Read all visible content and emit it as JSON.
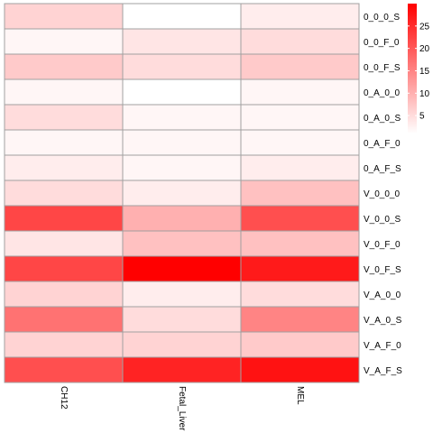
{
  "chart_data": {
    "type": "heatmap",
    "title": "",
    "xlabel": "",
    "ylabel": "",
    "columns": [
      "CH12",
      "Fetal_Liver",
      "MEL"
    ],
    "rows": [
      "0_0_0_S",
      "0_0_F_0",
      "0_0_F_S",
      "0_A_0_0",
      "0_A_0_S",
      "0_A_F_0",
      "0_A_F_S",
      "V_0_0_0",
      "V_0_0_S",
      "V_0_F_0",
      "V_0_F_S",
      "V_A_0_0",
      "V_A_0_S",
      "V_A_F_0",
      "V_A_F_S"
    ],
    "values": [
      [
        6,
        1,
        3
      ],
      [
        2,
        4,
        5
      ],
      [
        7,
        5,
        7
      ],
      [
        2,
        1,
        2
      ],
      [
        5,
        2,
        2
      ],
      [
        2,
        2,
        2
      ],
      [
        3,
        2,
        3
      ],
      [
        5,
        3,
        8
      ],
      [
        22,
        10,
        21
      ],
      [
        4,
        8,
        8
      ],
      [
        22,
        30,
        27
      ],
      [
        6,
        3,
        5
      ],
      [
        17,
        5,
        15
      ],
      [
        6,
        6,
        7
      ],
      [
        21,
        26,
        28
      ]
    ],
    "color_scale": {
      "min": 1,
      "max": 30,
      "low_color": "#ffffff",
      "high_color": "#ff0000"
    },
    "legend": {
      "placement": "top-right",
      "ticks": [
        5,
        10,
        15,
        20,
        25
      ]
    },
    "grid": true,
    "cell_border_color": "#a0a0a0"
  }
}
